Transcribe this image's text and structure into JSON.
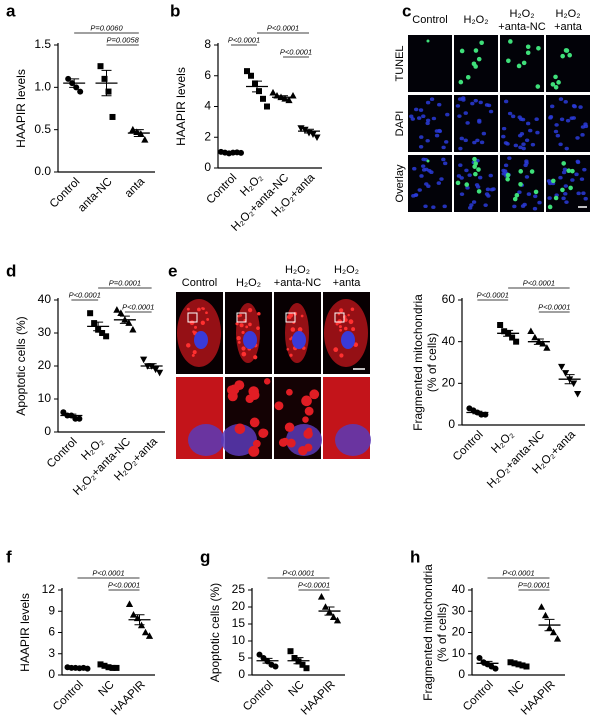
{
  "chart_data": [
    {
      "panel": "a",
      "type": "dot",
      "ylabel": [
        "HAAPIR levels"
      ],
      "categories": [
        "Control",
        "anta-NC",
        "anta"
      ],
      "markers": [
        "circle",
        "square",
        "triangle"
      ],
      "color": "#000000",
      "points": [
        [
          1.1,
          1.05,
          1.0,
          0.95
        ],
        [
          1.25,
          1.1,
          0.95,
          0.65
        ],
        [
          0.5,
          0.47,
          0.45,
          0.38
        ]
      ],
      "means": [
        1.05,
        1.05,
        0.46
      ],
      "errors": [
        0.05,
        0.15,
        0.04
      ],
      "ylim": [
        0,
        1.5
      ],
      "yticks": [
        {
          "value": 0,
          "label": "0.0"
        },
        0.5,
        {
          "value": 1,
          "label": "1.0"
        },
        1.5
      ],
      "comparisons": [
        {
          "label": "P=0.0060",
          "pair": [
            0,
            2
          ]
        },
        {
          "label": "P=0.0058",
          "pair": [
            1,
            2
          ]
        }
      ]
    },
    {
      "panel": "b",
      "type": "dot",
      "ylabel": [
        "HAAPIR levels"
      ],
      "categories": [
        "Control",
        "H₂O₂",
        "H₂O₂+anta-NC",
        "H₂O₂+anta"
      ],
      "markers": [
        "circle",
        "square",
        "triangle",
        "triangle-down"
      ],
      "color": "#000000",
      "points": [
        [
          1.05,
          1.0,
          0.95,
          1.0,
          1.02,
          0.98
        ],
        [
          6.3,
          6.0,
          5.5,
          5.0,
          4.5,
          4.0
        ],
        [
          4.9,
          4.7,
          4.6,
          4.5,
          4.4,
          4.7
        ],
        [
          2.6,
          2.5,
          2.3,
          2.2,
          2.0
        ]
      ],
      "means": [
        1.0,
        5.3,
        4.6,
        2.4
      ],
      "errors": [
        0.03,
        0.35,
        0.1,
        0.12
      ],
      "ylim": [
        0,
        8
      ],
      "yticks": [
        0,
        2,
        4,
        6,
        8
      ],
      "comparisons": [
        {
          "label": "P<0.0001",
          "pair": [
            1,
            3
          ]
        },
        {
          "label": "P<0.0001",
          "pair": [
            0,
            1
          ]
        },
        {
          "label": "P<0.0001",
          "pair": [
            2,
            3
          ]
        }
      ]
    },
    {
      "panel": "d",
      "type": "dot",
      "ylabel": [
        "Apoptotic cells (%)"
      ],
      "categories": [
        "Control",
        "H₂O₂",
        "H₂O₂+anta-NC",
        "H₂O₂+anta"
      ],
      "markers": [
        "circle",
        "square",
        "triangle",
        "triangle-down"
      ],
      "color": "#000000",
      "points": [
        [
          6,
          5,
          5,
          4,
          4
        ],
        [
          36,
          33,
          31,
          30,
          29
        ],
        [
          37,
          36,
          34,
          33,
          31
        ],
        [
          22,
          20,
          20,
          19,
          18
        ]
      ],
      "means": [
        5,
        32,
        34,
        20
      ],
      "errors": [
        0.4,
        1.3,
        1.1,
        0.7
      ],
      "ylim": [
        0,
        40
      ],
      "yticks": [
        0,
        10,
        20,
        30,
        40
      ],
      "comparisons": [
        {
          "label": "P=0.0001",
          "pair": [
            1,
            3
          ]
        },
        {
          "label": "P<0.0001",
          "pair": [
            0,
            1
          ]
        },
        {
          "label": "P<0.0001",
          "pair": [
            2,
            3
          ]
        }
      ]
    },
    {
      "panel": "",
      "type": "dot",
      "ylabel": [
        "Fragmented mitochondria",
        "(% of cells)"
      ],
      "categories": [
        "Control",
        "H₂O₂",
        "H₂O₂+anta-NC",
        "H₂O₂+anta"
      ],
      "markers": [
        "circle",
        "square",
        "triangle",
        "triangle-down"
      ],
      "color": "#000000",
      "points": [
        [
          8,
          7,
          6,
          5,
          5
        ],
        [
          48,
          45,
          44,
          42,
          40
        ],
        [
          45,
          42,
          40,
          39,
          37
        ],
        [
          28,
          25,
          22,
          20,
          15
        ]
      ],
      "means": [
        6,
        44,
        40,
        22
      ],
      "errors": [
        0.6,
        1.4,
        1.3,
        2.2
      ],
      "ylim": [
        0,
        60
      ],
      "yticks": [
        0,
        20,
        40,
        60
      ],
      "comparisons": [
        {
          "label": "P<0.0001",
          "pair": [
            1,
            3
          ]
        },
        {
          "label": "P<0.0001",
          "pair": [
            0,
            1
          ]
        },
        {
          "label": "P<0.0001",
          "pair": [
            2,
            3
          ]
        }
      ]
    },
    {
      "panel": "f",
      "type": "dot",
      "ylabel": [
        "HAAPIR levels"
      ],
      "categories": [
        "Control",
        "NC",
        "HAAPIR"
      ],
      "markers": [
        "circle",
        "square",
        "triangle"
      ],
      "color": "#000000",
      "points": [
        [
          1.1,
          1.0,
          1.0,
          0.95,
          1.0,
          0.9
        ],
        [
          1.5,
          1.3,
          1.1,
          1.0,
          1.0
        ],
        [
          10,
          8.5,
          8,
          7,
          6,
          5.5
        ]
      ],
      "means": [
        1.0,
        1.2,
        7.8
      ],
      "errors": [
        0.03,
        0.1,
        0.7
      ],
      "ylim": [
        0,
        12
      ],
      "yticks": [
        0,
        3,
        6,
        9,
        12
      ],
      "comparisons": [
        {
          "label": "P<0.0001",
          "pair": [
            0,
            2
          ]
        },
        {
          "label": "P<0.0001",
          "pair": [
            1,
            2
          ]
        }
      ]
    },
    {
      "panel": "g",
      "type": "dot",
      "ylabel": [
        "Apoptotic cells (%)"
      ],
      "categories": [
        "Control",
        "NC",
        "HAAPIR"
      ],
      "markers": [
        "circle",
        "square",
        "triangle"
      ],
      "color": "#000000",
      "points": [
        [
          6,
          5,
          4,
          3,
          2.5
        ],
        [
          7,
          5,
          4,
          3,
          2
        ],
        [
          23,
          20,
          18.5,
          17,
          16
        ]
      ],
      "means": [
        4.2,
        4.2,
        18.8
      ],
      "errors": [
        0.7,
        0.9,
        1.2
      ],
      "ylim": [
        0,
        25
      ],
      "yticks": [
        0,
        5,
        10,
        15,
        20,
        25
      ],
      "comparisons": [
        {
          "label": "P<0.0001",
          "pair": [
            0,
            2
          ]
        },
        {
          "label": "P<0.0001",
          "pair": [
            1,
            2
          ]
        }
      ]
    },
    {
      "panel": "h",
      "type": "dot",
      "ylabel": [
        "Fragmented mitochondria",
        "(% of cells)"
      ],
      "categories": [
        "Control",
        "NC",
        "HAAPIR"
      ],
      "markers": [
        "circle",
        "square",
        "triangle"
      ],
      "color": "#000000",
      "points": [
        [
          8,
          6,
          5,
          4,
          3
        ],
        [
          6,
          5.5,
          5,
          4.5,
          4
        ],
        [
          32,
          28,
          22,
          20,
          17
        ]
      ],
      "means": [
        5.5,
        5,
        23.5
      ],
      "errors": [
        0.9,
        0.4,
        2.7
      ],
      "ylim": [
        0,
        40
      ],
      "yticks": [
        0,
        10,
        20,
        30,
        40
      ],
      "comparisons": [
        {
          "label": "P<0.0001",
          "pair": [
            0,
            2
          ]
        },
        {
          "label": "P=0.0001",
          "pair": [
            1,
            2
          ]
        }
      ]
    }
  ],
  "image_panels": [
    {
      "panel": "c",
      "columns": [
        [
          "Control"
        ],
        [
          "H₂O₂"
        ],
        [
          "H₂O₂",
          "+anta-NC"
        ],
        [
          "H₂O₂",
          "+anta"
        ]
      ],
      "rows": [
        "TUNEL",
        "DAPI",
        "Overlay"
      ]
    },
    {
      "panel": "e",
      "columns": [
        [
          "Control"
        ],
        [
          "H₂O₂"
        ],
        [
          "H₂O₂",
          "+anta-NC"
        ],
        [
          "H₂O₂",
          "+anta"
        ]
      ]
    }
  ]
}
